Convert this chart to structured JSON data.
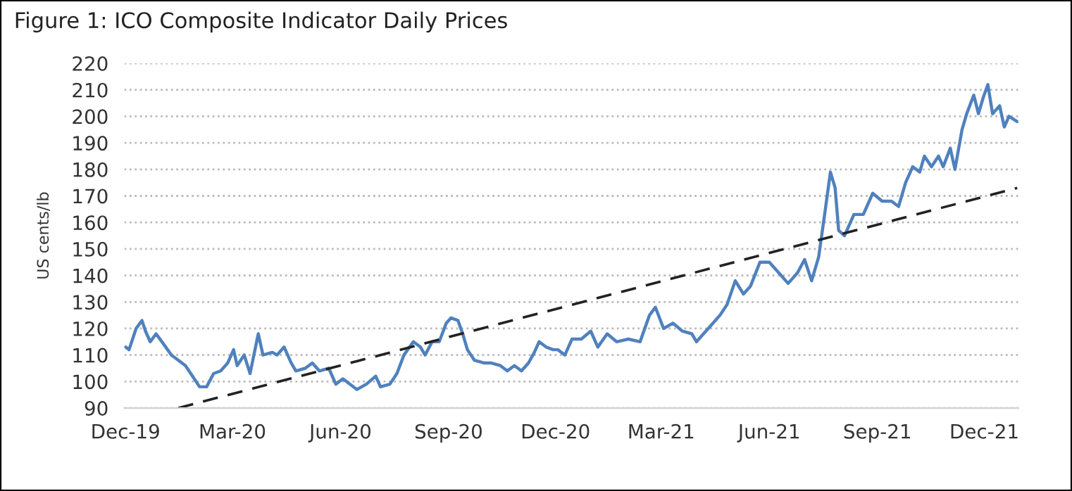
{
  "chart_data": {
    "type": "line",
    "title": "Figure 1: ICO Composite Indicator Daily Prices",
    "ylabel": "US cents/lb",
    "series": [
      {
        "color": "#4f81bd",
        "line_style": "solid",
        "x": [
          "2019-12-01",
          "2019-12-04",
          "2019-12-10",
          "2019-12-15",
          "2019-12-18",
          "2019-12-22",
          "2019-12-27",
          "2020-01-01",
          "2020-01-09",
          "2020-01-21",
          "2020-01-27",
          "2020-02-02",
          "2020-02-08",
          "2020-02-14",
          "2020-02-20",
          "2020-02-26",
          "2020-03-02",
          "2020-03-05",
          "2020-03-11",
          "2020-03-16",
          "2020-03-23",
          "2020-03-27",
          "2020-04-04",
          "2020-04-08",
          "2020-04-14",
          "2020-04-20",
          "2020-04-24",
          "2020-05-02",
          "2020-05-08",
          "2020-05-14",
          "2020-05-22",
          "2020-05-28",
          "2020-06-03",
          "2020-06-15",
          "2020-06-23",
          "2020-07-01",
          "2020-07-05",
          "2020-07-13",
          "2020-07-19",
          "2020-07-25",
          "2020-08-02",
          "2020-08-08",
          "2020-08-12",
          "2020-08-18",
          "2020-08-24",
          "2020-08-30",
          "2020-09-03",
          "2020-09-09",
          "2020-09-13",
          "2020-09-17",
          "2020-09-23",
          "2020-10-01",
          "2020-10-07",
          "2020-10-15",
          "2020-10-21",
          "2020-10-27",
          "2020-11-02",
          "2020-11-08",
          "2020-11-13",
          "2020-11-17",
          "2020-11-23",
          "2020-11-29",
          "2020-12-03",
          "2020-12-09",
          "2020-12-15",
          "2020-12-23",
          "2020-12-31",
          "2021-01-06",
          "2021-01-14",
          "2021-01-22",
          "2021-02-01",
          "2021-02-11",
          "2021-02-19",
          "2021-02-24",
          "2021-03-03",
          "2021-03-11",
          "2021-03-19",
          "2021-03-27",
          "2021-03-31",
          "2021-04-06",
          "2021-04-12",
          "2021-04-20",
          "2021-04-26",
          "2021-05-03",
          "2021-05-10",
          "2021-05-16",
          "2021-05-24",
          "2021-06-01",
          "2021-06-09",
          "2021-06-17",
          "2021-06-25",
          "2021-07-01",
          "2021-07-07",
          "2021-07-13",
          "2021-07-19",
          "2021-07-23",
          "2021-07-27",
          "2021-07-30",
          "2021-08-04",
          "2021-08-12",
          "2021-08-20",
          "2021-08-28",
          "2021-09-05",
          "2021-09-13",
          "2021-09-19",
          "2021-09-25",
          "2021-10-01",
          "2021-10-07",
          "2021-10-11",
          "2021-10-17",
          "2021-10-23",
          "2021-10-27",
          "2021-11-02",
          "2021-11-06",
          "2021-11-12",
          "2021-11-16",
          "2021-11-22",
          "2021-11-26",
          "2021-11-30",
          "2021-12-04",
          "2021-12-08",
          "2021-12-14",
          "2021-12-18",
          "2021-12-22",
          "2021-12-29"
        ],
        "values": [
          113,
          112,
          120,
          123,
          119,
          115,
          118,
          115,
          110,
          106,
          102,
          98,
          98,
          103,
          104,
          107,
          112,
          106,
          110,
          103,
          118,
          110,
          111,
          110,
          113,
          107,
          104,
          105,
          107,
          104,
          105,
          99,
          101,
          97,
          99,
          102,
          98,
          99,
          103,
          110,
          115,
          113,
          110,
          115,
          115,
          122,
          124,
          123,
          118,
          112,
          108,
          107,
          107,
          106,
          104,
          106,
          104,
          107,
          111,
          115,
          113,
          112,
          112,
          110,
          116,
          116,
          119,
          113,
          118,
          115,
          116,
          115,
          125,
          128,
          120,
          122,
          119,
          118,
          115,
          118,
          121,
          125,
          129,
          138,
          133,
          136,
          145,
          145,
          141,
          137,
          141,
          146,
          138,
          147,
          166,
          179,
          173,
          157,
          155,
          163,
          163,
          171,
          168,
          168,
          166,
          175,
          181,
          179,
          185,
          181,
          185,
          181,
          188,
          180,
          195,
          201,
          208,
          201,
          207,
          212,
          201,
          204,
          196,
          200,
          198
        ]
      },
      {
        "type": "line",
        "color": "#222222",
        "line_style": "dashed",
        "x": [
          "2020-01-15",
          "2021-12-29"
        ],
        "values": [
          90,
          173
        ]
      }
    ],
    "xlim": [
      "2019-11-30",
      "2021-12-30"
    ],
    "xticks": [
      {
        "value": "2019-12-01",
        "label": "Dec-19"
      },
      {
        "value": "2020-03-01",
        "label": "Mar-20"
      },
      {
        "value": "2020-06-01",
        "label": "Jun-20"
      },
      {
        "value": "2020-09-01",
        "label": "Sep-20"
      },
      {
        "value": "2020-12-01",
        "label": "Dec-20"
      },
      {
        "value": "2021-03-01",
        "label": "Mar-21"
      },
      {
        "value": "2021-06-01",
        "label": "Jun-21"
      },
      {
        "value": "2021-09-01",
        "label": "Sep-21"
      },
      {
        "value": "2021-12-01",
        "label": "Dec-21"
      }
    ],
    "ylim": [
      90,
      220
    ],
    "yticks": [
      90,
      100,
      110,
      120,
      130,
      140,
      150,
      160,
      170,
      180,
      190,
      200,
      210,
      220
    ],
    "grid": "y",
    "marker": "none"
  }
}
